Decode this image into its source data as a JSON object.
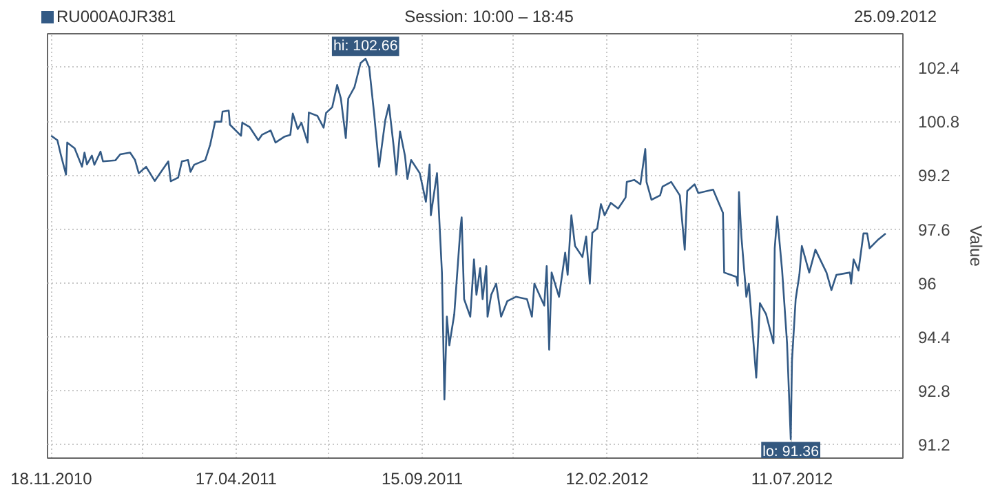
{
  "chart_data": {
    "type": "line",
    "subtitle": "Session: 10:00 – 18:45",
    "ylabel": "Value",
    "annotations": [
      "25.09.2012",
      {
        "text": "hi: 102.66",
        "x": "2011-07-31",
        "y": 102.66
      },
      {
        "text": "lo: 91.36",
        "x": "2012-07-10",
        "y": 91.36
      }
    ],
    "x": [
      "2010-11-18",
      "2010-11-23",
      "2010-11-26",
      "2010-11-30",
      "2010-12-01",
      "2010-12-07",
      "2010-12-13",
      "2010-12-15",
      "2010-12-17",
      "2010-12-21",
      "2010-12-23",
      "2010-12-28",
      "2010-12-30",
      "2011-01-09",
      "2011-01-13",
      "2011-01-21",
      "2011-01-25",
      "2011-01-28",
      "2011-02-03",
      "2011-02-10",
      "2011-02-21",
      "2011-02-23",
      "2011-03-01",
      "2011-03-04",
      "2011-03-09",
      "2011-03-11",
      "2011-03-14",
      "2011-03-23",
      "2011-03-27",
      "2011-03-31",
      "2011-04-05",
      "2011-04-06",
      "2011-04-11",
      "2011-04-12",
      "2011-04-21",
      "2011-04-22",
      "2011-04-28",
      "2011-05-05",
      "2011-05-08",
      "2011-05-15",
      "2011-05-19",
      "2011-05-26",
      "2011-05-31",
      "2011-06-02",
      "2011-06-06",
      "2011-06-09",
      "2011-06-14",
      "2011-06-15",
      "2011-06-22",
      "2011-06-27",
      "2011-06-29",
      "2011-07-04",
      "2011-07-08",
      "2011-07-11",
      "2011-07-15",
      "2011-07-17",
      "2011-07-22",
      "2011-07-27",
      "2011-07-31",
      "2011-08-03",
      "2011-08-07",
      "2011-08-11",
      "2011-08-16",
      "2011-08-19",
      "2011-08-23",
      "2011-08-25",
      "2011-08-28",
      "2011-09-01",
      "2011-09-03",
      "2011-09-06",
      "2011-09-13",
      "2011-09-18",
      "2011-09-21",
      "2011-09-22",
      "2011-09-27",
      "2011-10-01",
      "2011-10-02",
      "2011-10-03",
      "2011-10-05",
      "2011-10-07",
      "2011-10-11",
      "2011-10-16",
      "2011-10-17",
      "2011-10-19",
      "2011-10-24",
      "2011-10-27",
      "2011-10-29",
      "2011-11-01",
      "2011-11-03",
      "2011-11-06",
      "2011-11-07",
      "2011-11-10",
      "2011-11-14",
      "2011-11-18",
      "2011-11-23",
      "2011-11-30",
      "2011-12-09",
      "2011-12-13",
      "2011-12-15",
      "2011-12-23",
      "2011-12-25",
      "2011-12-27",
      "2011-12-29",
      "2012-01-04",
      "2012-01-09",
      "2012-01-11",
      "2012-01-14",
      "2012-01-17",
      "2012-01-23",
      "2012-01-26",
      "2012-01-29",
      "2012-01-31",
      "2012-02-04",
      "2012-02-07",
      "2012-02-10",
      "2012-02-15",
      "2012-02-21",
      "2012-02-27",
      "2012-02-28",
      "2012-03-05",
      "2012-03-10",
      "2012-03-14",
      "2012-03-15",
      "2012-03-19",
      "2012-03-26",
      "2012-03-28",
      "2012-04-04",
      "2012-04-11",
      "2012-04-15",
      "2012-04-17",
      "2012-04-23",
      "2012-04-26",
      "2012-05-08",
      "2012-05-16",
      "2012-05-17",
      "2012-05-27",
      "2012-05-28",
      "2012-05-29",
      "2012-05-31",
      "2012-06-04",
      "2012-06-06",
      "2012-06-12",
      "2012-06-15",
      "2012-06-20",
      "2012-06-26",
      "2012-06-27",
      "2012-06-29",
      "2012-07-03",
      "2012-07-07",
      "2012-07-10",
      "2012-07-11",
      "2012-07-14",
      "2012-07-17",
      "2012-07-19",
      "2012-07-25",
      "2012-07-30",
      "2012-08-08",
      "2012-08-12",
      "2012-08-16",
      "2012-08-27",
      "2012-08-28",
      "2012-08-30",
      "2012-09-03",
      "2012-09-07",
      "2012-09-10",
      "2012-09-12",
      "2012-09-19",
      "2012-09-25"
    ],
    "series": [
      {
        "name": "RU000A0JR381",
        "color": "#335a85",
        "values": [
          100.37,
          100.24,
          99.78,
          99.22,
          100.17,
          100.0,
          99.45,
          99.87,
          99.52,
          99.78,
          99.51,
          99.9,
          99.61,
          99.64,
          99.82,
          99.87,
          99.65,
          99.26,
          99.45,
          99.03,
          99.61,
          99.02,
          99.13,
          99.61,
          99.65,
          99.3,
          99.51,
          99.65,
          100.11,
          100.79,
          100.79,
          101.09,
          101.12,
          100.7,
          100.37,
          100.76,
          100.63,
          100.24,
          100.4,
          100.53,
          100.17,
          100.34,
          100.4,
          101.03,
          100.57,
          100.76,
          100.17,
          101.06,
          100.96,
          100.61,
          101.05,
          101.22,
          101.88,
          101.48,
          100.3,
          101.48,
          101.81,
          102.53,
          102.66,
          102.4,
          101.02,
          99.45,
          100.83,
          101.29,
          100.0,
          99.22,
          100.5,
          99.78,
          99.09,
          99.65,
          99.26,
          98.41,
          99.52,
          98.01,
          99.26,
          96.31,
          94.48,
          92.54,
          95.0,
          94.15,
          95.07,
          97.62,
          97.95,
          95.52,
          95.0,
          96.7,
          95.65,
          96.44,
          95.52,
          96.5,
          95.0,
          95.65,
          95.98,
          95.0,
          95.46,
          95.59,
          95.52,
          95.0,
          95.98,
          95.33,
          96.5,
          94.02,
          96.31,
          95.59,
          96.9,
          96.24,
          98.01,
          97.1,
          96.77,
          97.38,
          95.98,
          97.49,
          97.62,
          98.34,
          98.01,
          98.38,
          98.21,
          98.54,
          99.0,
          99.06,
          98.93,
          99.98,
          99.0,
          98.47,
          98.6,
          98.86,
          99.0,
          98.6,
          96.99,
          98.73,
          98.93,
          98.67,
          98.77,
          98.08,
          96.31,
          96.18,
          95.92,
          98.7,
          97.36,
          95.59,
          95.98,
          93.19,
          95.4,
          95.07,
          94.21,
          97.03,
          97.98,
          96.37,
          94.21,
          91.36,
          93.69,
          95.52,
          96.24,
          97.1,
          96.31,
          96.99,
          96.31,
          95.79,
          96.24,
          96.31,
          95.98,
          96.7,
          96.37,
          97.47,
          97.47,
          97.03,
          97.29,
          97.47
        ]
      }
    ],
    "xlim": [
      "2010-11-15",
      "2012-10-09"
    ],
    "xticks": [
      {
        "value": "2010-11-18",
        "label": "18.11.2010"
      },
      {
        "value": "2011-01-31",
        "label": null
      },
      {
        "value": "2011-04-17",
        "label": "17.04.2011"
      },
      {
        "value": "2011-07-01",
        "label": null
      },
      {
        "value": "2011-09-15",
        "label": "15.09.2011"
      },
      {
        "value": "2011-11-28",
        "label": null
      },
      {
        "value": "2012-02-12",
        "label": "12.02.2012"
      },
      {
        "value": "2012-04-26",
        "label": null
      },
      {
        "value": "2012-07-11",
        "label": "11.07.2012"
      }
    ],
    "ylim": [
      90.8,
      103.4
    ],
    "yticks": [
      91.2,
      92.8,
      94.4,
      96,
      97.6,
      99.2,
      100.8,
      102.4
    ],
    "grid": true,
    "legend": "top left",
    "marker": "none",
    "line_style": "solid"
  }
}
